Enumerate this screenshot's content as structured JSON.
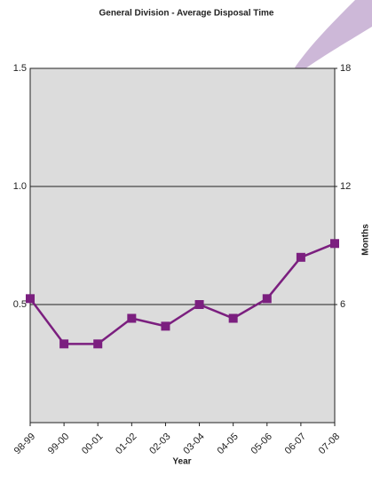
{
  "chart_data": {
    "type": "line",
    "title": "General Division - Average Disposal Time",
    "x_label": "Year",
    "y2_label": "Months",
    "categories": [
      "98-99",
      "99-00",
      "00-01",
      "01-02",
      "02-03",
      "03-04",
      "04-05",
      "05-06",
      "06-07",
      "07-08"
    ],
    "series": [
      {
        "name": "Average Disposal Time",
        "color": "#7b1f7f",
        "axis": "y2",
        "values": [
          6.3,
          4.0,
          4.0,
          5.3,
          4.9,
          6.0,
          5.3,
          6.3,
          8.4,
          9.1
        ]
      }
    ],
    "ylim": [
      0,
      1.5
    ],
    "yticks": [
      0.5,
      {
        "value": 1,
        "label": "1.0"
      },
      1.5
    ],
    "y2lim": [
      0,
      18
    ],
    "y2ticks": [
      6,
      12,
      18
    ],
    "grid": true,
    "plot_background": "#dcdcdc"
  }
}
